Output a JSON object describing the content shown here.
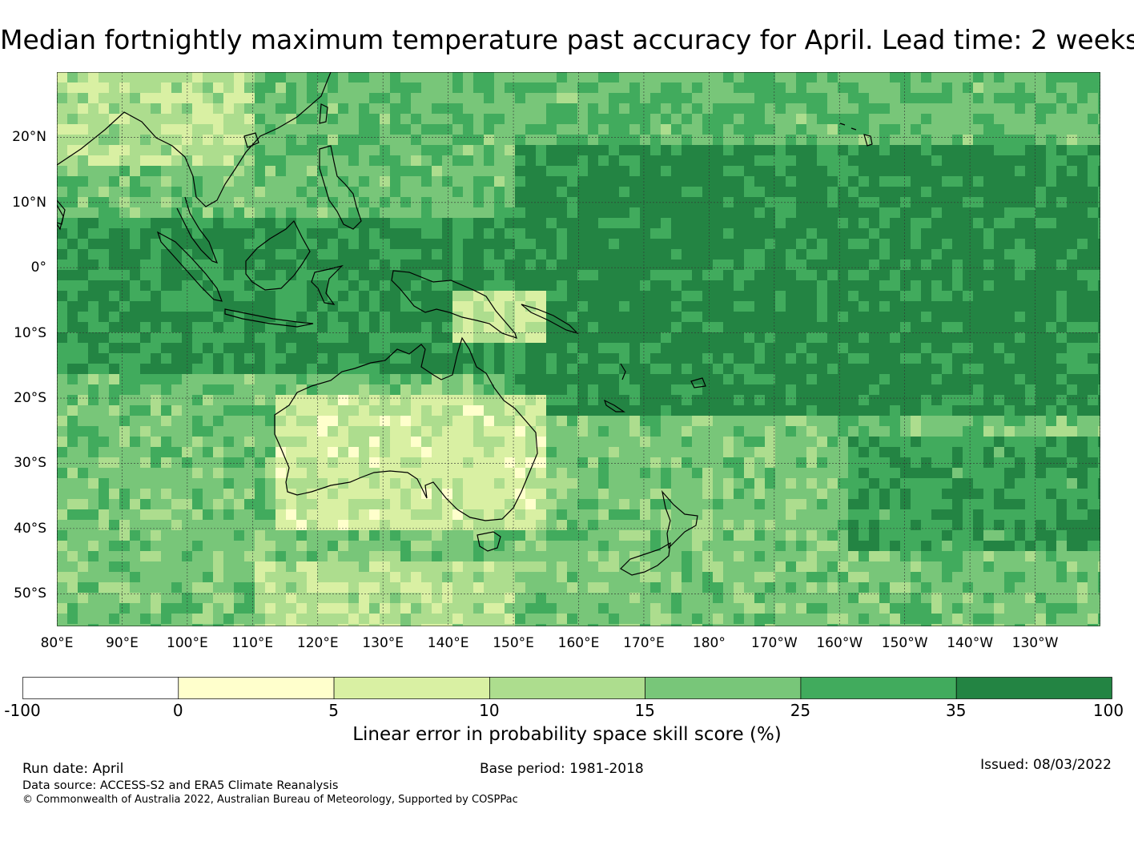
{
  "title": "Median fortnightly maximum temperature past accuracy for April. Lead time: 2 weeks",
  "map": {
    "lon_labels": [
      "80°E",
      "90°E",
      "100°E",
      "110°E",
      "120°E",
      "130°E",
      "140°E",
      "150°E",
      "160°E",
      "170°E",
      "180°",
      "170°W",
      "160°W",
      "150°W",
      "140°W",
      "130°W"
    ],
    "lat_labels": [
      "20°N",
      "10°N",
      "0°",
      "10°S",
      "20°S",
      "30°S",
      "40°S",
      "50°S"
    ],
    "lon_range": [
      80,
      240
    ],
    "lat_range": [
      30,
      -55
    ],
    "colors": {
      "land_outline": "#000000",
      "gridline": "#333333"
    }
  },
  "colorbar": {
    "ticks": [
      "-100",
      "0",
      "5",
      "10",
      "15",
      "25",
      "35",
      "100"
    ],
    "colors": [
      "#ffffff",
      "#ffffcc",
      "#d9f0a3",
      "#addd8e",
      "#78c679",
      "#41ab5d",
      "#238443"
    ],
    "label": "Linear error in probability space skill score (%)"
  },
  "footer": {
    "run_date": "Run date: April",
    "base_period": "Base period: 1981-2018",
    "issued": "Issued: 08/03/2022",
    "data_source": "Data source: ACCESS-S2 and ERA5 Climate Reanalysis",
    "copyright": "© Commonwealth of Australia 2022, Australian Bureau of Meteorology, Supported by COSPPac"
  }
}
